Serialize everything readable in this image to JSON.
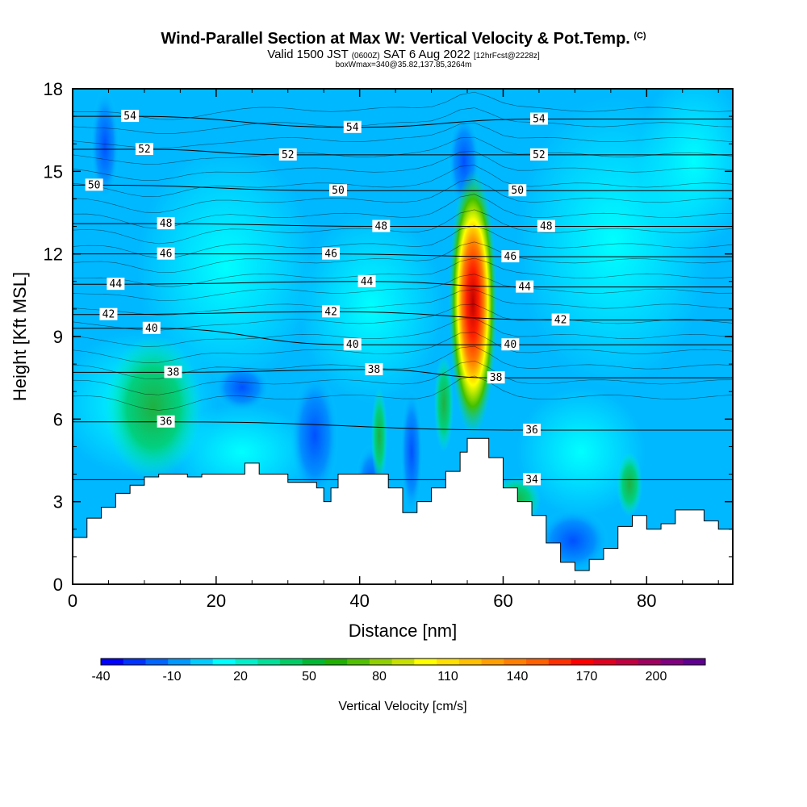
{
  "header": {
    "title": "Wind-Parallel Section at Max W: Vertical Velocity & Pot.Temp.",
    "title_mark": "(C)",
    "valid_prefix": "Valid 1500 JST",
    "valid_z": "(0600Z)",
    "valid_date": "SAT 6 Aug 2022",
    "fcst": "[12hrFcst@2228z]",
    "boxline": "boxWmax=340@35.82,137.85,3264m"
  },
  "chart_data": {
    "type": "heatmap",
    "xlabel": "Distance [nm]",
    "ylabel": "Height [Kft MSL]",
    "xlim": [
      0,
      92
    ],
    "ylim": [
      0,
      18
    ],
    "x_ticks": [
      0,
      20,
      40,
      60,
      80
    ],
    "y_ticks": [
      0,
      3,
      6,
      9,
      12,
      15,
      18
    ],
    "colorbar": {
      "title": "Vertical Velocity [cm/s]",
      "tick_labels": [
        "-40",
        "-10",
        "20",
        "50",
        "80",
        "110",
        "140",
        "170",
        "200"
      ],
      "colors": [
        "#0000ff",
        "#0033ff",
        "#0066ff",
        "#0099ff",
        "#00ccff",
        "#00ffff",
        "#00f0cc",
        "#00e099",
        "#00cc66",
        "#00b833",
        "#20b000",
        "#50c000",
        "#90d000",
        "#c8e000",
        "#ffff00",
        "#ffe000",
        "#ffc000",
        "#ffa000",
        "#ff8000",
        "#ff6000",
        "#ff3000",
        "#ff0000",
        "#e00020",
        "#c00040",
        "#a00060",
        "#800080",
        "#600090"
      ]
    },
    "terrain": [
      [
        0,
        1.7
      ],
      [
        2,
        2.4
      ],
      [
        4,
        2.8
      ],
      [
        6,
        3.3
      ],
      [
        8,
        3.6
      ],
      [
        10,
        3.9
      ],
      [
        12,
        4.0
      ],
      [
        14,
        4.0
      ],
      [
        16,
        3.9
      ],
      [
        18,
        4.0
      ],
      [
        20,
        4.0
      ],
      [
        22,
        4.0
      ],
      [
        24,
        4.4
      ],
      [
        26,
        4.0
      ],
      [
        28,
        4.0
      ],
      [
        30,
        3.7
      ],
      [
        32,
        3.7
      ],
      [
        34,
        3.5
      ],
      [
        35,
        3.0
      ],
      [
        36,
        3.5
      ],
      [
        37,
        4.0
      ],
      [
        40,
        4.0
      ],
      [
        42,
        4.0
      ],
      [
        44,
        3.5
      ],
      [
        46,
        2.6
      ],
      [
        48,
        3.0
      ],
      [
        50,
        3.5
      ],
      [
        52,
        4.1
      ],
      [
        54,
        4.8
      ],
      [
        55,
        5.3
      ],
      [
        56,
        5.3
      ],
      [
        58,
        4.6
      ],
      [
        60,
        3.5
      ],
      [
        62,
        3.0
      ],
      [
        64,
        2.5
      ],
      [
        66,
        1.5
      ],
      [
        68,
        0.8
      ],
      [
        70,
        0.5
      ],
      [
        72,
        0.9
      ],
      [
        74,
        1.3
      ],
      [
        76,
        2.1
      ],
      [
        78,
        2.5
      ],
      [
        80,
        2.0
      ],
      [
        82,
        2.2
      ],
      [
        84,
        2.7
      ],
      [
        86,
        2.7
      ],
      [
        88,
        2.3
      ],
      [
        90,
        2.0
      ],
      [
        92,
        2.0
      ]
    ],
    "updraft_core": {
      "x": 55.5,
      "y_bottom": 5.3,
      "y_top": 14.8,
      "max_value": 340
    },
    "theta_contours": [
      {
        "label": "54",
        "x": 8,
        "y": 17.0
      },
      {
        "label": "54",
        "x": 39,
        "y": 16.6
      },
      {
        "label": "54",
        "x": 65,
        "y": 16.9
      },
      {
        "label": "52",
        "x": 10,
        "y": 15.8
      },
      {
        "label": "52",
        "x": 30,
        "y": 15.6
      },
      {
        "label": "52",
        "x": 65,
        "y": 15.6
      },
      {
        "label": "50",
        "x": 3,
        "y": 14.5
      },
      {
        "label": "50",
        "x": 37,
        "y": 14.3
      },
      {
        "label": "50",
        "x": 62,
        "y": 14.3
      },
      {
        "label": "48",
        "x": 13,
        "y": 13.1
      },
      {
        "label": "48",
        "x": 43,
        "y": 13.0
      },
      {
        "label": "48",
        "x": 66,
        "y": 13.0
      },
      {
        "label": "46",
        "x": 13,
        "y": 12.0
      },
      {
        "label": "46",
        "x": 36,
        "y": 12.0
      },
      {
        "label": "46",
        "x": 61,
        "y": 11.9
      },
      {
        "label": "44",
        "x": 6,
        "y": 10.9
      },
      {
        "label": "44",
        "x": 41,
        "y": 11.0
      },
      {
        "label": "44",
        "x": 63,
        "y": 10.8
      },
      {
        "label": "42",
        "x": 5,
        "y": 9.8
      },
      {
        "label": "42",
        "x": 36,
        "y": 9.9
      },
      {
        "label": "42",
        "x": 68,
        "y": 9.6
      },
      {
        "label": "40",
        "x": 11,
        "y": 9.3
      },
      {
        "label": "40",
        "x": 39,
        "y": 8.7
      },
      {
        "label": "40",
        "x": 61,
        "y": 8.7
      },
      {
        "label": "38",
        "x": 14,
        "y": 7.7
      },
      {
        "label": "38",
        "x": 42,
        "y": 7.8
      },
      {
        "label": "38",
        "x": 59,
        "y": 7.5
      },
      {
        "label": "36",
        "x": 13,
        "y": 5.9
      },
      {
        "label": "36",
        "x": 64,
        "y": 5.6
      },
      {
        "label": "34",
        "x": 64,
        "y": 3.8
      }
    ]
  }
}
